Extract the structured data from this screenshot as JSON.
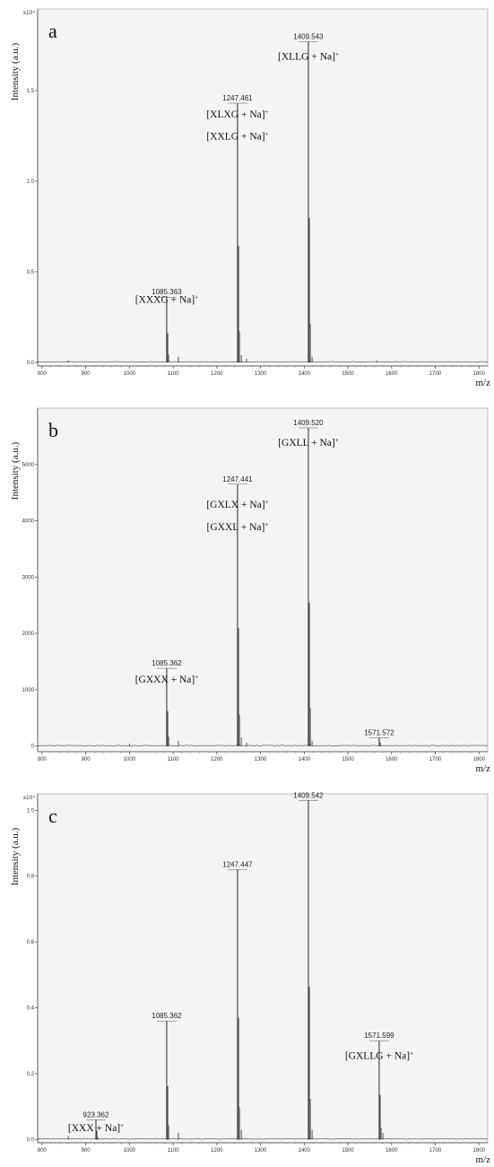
{
  "figure": {
    "xlabel": "m/z",
    "ylabel": "Intensity (a.u.)"
  },
  "colors": {
    "plot_bg": "#f4f4f4",
    "trace": "#111111",
    "axis": "#444444"
  },
  "chart_data": [
    {
      "type": "line",
      "panel_label": "a",
      "multiplier": "x10⁴",
      "xlim": [
        790,
        1820
      ],
      "ylim": [
        -0.02,
        1.95
      ],
      "xticks": [
        800,
        900,
        1000,
        1100,
        1200,
        1300,
        1400,
        1500,
        1600,
        1700,
        1800
      ],
      "yticks": [
        0.0,
        0.5,
        1.0,
        1.5
      ],
      "ytick_labels": [
        "0.0",
        "0.5",
        "1.0",
        "1.5"
      ],
      "peaks": [
        {
          "x": 1085.363,
          "y": 0.36,
          "label": "1085.363"
        },
        {
          "x": 1247.461,
          "y": 1.43,
          "label": "1247.461"
        },
        {
          "x": 1409.543,
          "y": 1.77,
          "label": "1409.543"
        }
      ],
      "minor_peaks": [
        [
          1112,
          0.03
        ],
        [
          1256,
          0.04
        ],
        [
          1268,
          0.02
        ],
        [
          1418,
          0.03
        ],
        [
          860,
          0.01
        ],
        [
          1566,
          0.01
        ]
      ],
      "annotations": [
        {
          "x": 1085.363,
          "y": 0.33,
          "lines": [
            "[XXXG + Na]",
            "+"
          ]
        },
        {
          "x": 1247.461,
          "y": 1.35,
          "lines": [
            "[XLXG + Na]",
            "+"
          ]
        },
        {
          "x": 1247.461,
          "y": 1.23,
          "lines": [
            "[XXLG + Na]",
            "+"
          ]
        },
        {
          "x": 1409.543,
          "y": 1.67,
          "lines": [
            "[XLLG + Na]",
            "+"
          ]
        }
      ]
    },
    {
      "type": "line",
      "panel_label": "b",
      "multiplier": "",
      "xlim": [
        790,
        1820
      ],
      "ylim": [
        -100,
        6000
      ],
      "xticks": [
        800,
        900,
        1000,
        1100,
        1200,
        1300,
        1400,
        1500,
        1600,
        1700,
        1800
      ],
      "yticks": [
        0,
        1000,
        2000,
        3000,
        4000,
        5000
      ],
      "ytick_labels": [
        "0",
        "1000",
        "2000",
        "3000",
        "4000",
        "5000"
      ],
      "peaks": [
        {
          "x": 1085.362,
          "y": 1380,
          "label": "1085.362"
        },
        {
          "x": 1247.441,
          "y": 4650,
          "label": "1247.441"
        },
        {
          "x": 1409.52,
          "y": 5650,
          "label": "1409.520"
        },
        {
          "x": 1571.572,
          "y": 150,
          "label": "1571.572"
        }
      ],
      "minor_peaks": [
        [
          1112,
          90
        ],
        [
          1256,
          150
        ],
        [
          1268,
          60
        ],
        [
          1418,
          90
        ],
        [
          1000,
          40
        ]
      ],
      "annotations": [
        {
          "x": 1085.362,
          "y": 1130,
          "lines": [
            "[GXXX + Na]",
            "+"
          ]
        },
        {
          "x": 1247.441,
          "y": 4230,
          "lines": [
            "[GXLX + Na]",
            "+"
          ]
        },
        {
          "x": 1247.441,
          "y": 3830,
          "lines": [
            "[GXXL + Na]",
            "+"
          ]
        },
        {
          "x": 1409.52,
          "y": 5330,
          "lines": [
            "[GXLL + Na]",
            "+"
          ]
        }
      ]
    },
    {
      "type": "line",
      "panel_label": "c",
      "multiplier": "x10⁴",
      "xlim": [
        790,
        1820
      ],
      "ylim": [
        -0.01,
        1.05
      ],
      "xticks": [
        800,
        900,
        1000,
        1100,
        1200,
        1300,
        1400,
        1500,
        1600,
        1700,
        1800
      ],
      "yticks": [
        0.0,
        0.2,
        0.4,
        0.6,
        0.8,
        1.0
      ],
      "ytick_labels": [
        "0.0",
        "0.2",
        "0.4",
        "0.6",
        "0.8",
        "1.0"
      ],
      "peaks": [
        {
          "x": 923.362,
          "y": 0.06,
          "label": "923.362"
        },
        {
          "x": 1085.362,
          "y": 0.36,
          "label": "1085.362"
        },
        {
          "x": 1247.447,
          "y": 0.82,
          "label": "1247.447"
        },
        {
          "x": 1409.542,
          "y": 1.03,
          "label": "1409.542"
        },
        {
          "x": 1571.599,
          "y": 0.3,
          "label": "1571.599"
        }
      ],
      "minor_peaks": [
        [
          860,
          0.01
        ],
        [
          1112,
          0.02
        ],
        [
          1256,
          0.03
        ],
        [
          1418,
          0.03
        ],
        [
          1580,
          0.02
        ]
      ],
      "annotations": [
        {
          "x": 923.362,
          "y": 0.025,
          "lines": [
            "[XXX + Na]",
            "+"
          ]
        },
        {
          "x": 1571.599,
          "y": 0.245,
          "lines": [
            "[GXLLG + Na]",
            "+"
          ]
        }
      ]
    }
  ]
}
